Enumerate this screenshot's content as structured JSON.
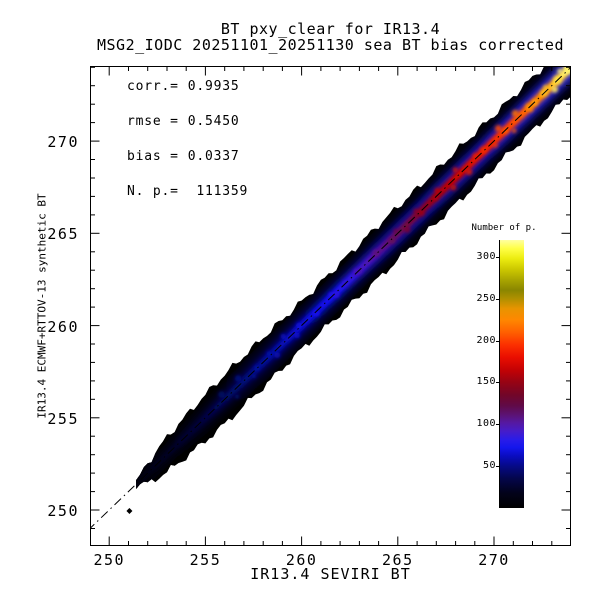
{
  "figure": {
    "title_line1": "BT pxy_clear for IR13.4",
    "title_line2": "MSG2_IODC 20251101_20251130 sea BT bias corrected"
  },
  "stats_panel": {
    "rows": [
      {
        "label": "corr.=",
        "value": "0.9935"
      },
      {
        "label": "rmse =",
        "value": "0.5450"
      },
      {
        "label": "bias =",
        "value": "0.0337"
      },
      {
        "label": "N. p.=",
        "value": " 111359"
      }
    ]
  },
  "chart_data": {
    "type": "heatmap",
    "title": "BT pxy_clear for IR13.4",
    "subtitle": "MSG2_IODC 20251101_20251130 sea BT bias corrected",
    "xlabel": "IR13.4 SEVIRI BT",
    "ylabel": "IR13.4 ECMWF+RTTOV-13 synthetic BT",
    "xlim": [
      249.0,
      274.0
    ],
    "ylim": [
      248.05,
      274.07
    ],
    "xticks": [
      250,
      255,
      260,
      265,
      270
    ],
    "yticks": [
      250,
      255,
      260,
      265,
      270
    ],
    "minor_tick_step": 1,
    "grid": false,
    "stats": {
      "corr": 0.9935,
      "rmse": 0.545,
      "bias": 0.0337,
      "n_points": 111359
    },
    "identity_line": {
      "style": "dash-dot",
      "from": 247.5,
      "to": 275.0,
      "dash": "9 4 1.5 4",
      "color": "#000000"
    },
    "colorbar": {
      "title": "Number of p.",
      "ticks": [
        50,
        100,
        150,
        200,
        250,
        300
      ],
      "vmin": 0,
      "vmax": 320,
      "legend_position": "right-inside",
      "stops": [
        [
          0,
          "#000000"
        ],
        [
          18,
          "#02021a"
        ],
        [
          35,
          "#04064a"
        ],
        [
          50,
          "#060a86"
        ],
        [
          62,
          "#0a0cc0"
        ],
        [
          72,
          "#1416ec"
        ],
        [
          82,
          "#2a1ce8"
        ],
        [
          92,
          "#461cc8"
        ],
        [
          102,
          "#5618a0"
        ],
        [
          112,
          "#5c1270"
        ],
        [
          122,
          "#600a48"
        ],
        [
          135,
          "#720628"
        ],
        [
          150,
          "#960314"
        ],
        [
          165,
          "#c40204"
        ],
        [
          180,
          "#ea0e00"
        ],
        [
          195,
          "#fc3000"
        ],
        [
          210,
          "#ff6000"
        ],
        [
          225,
          "#ff8800"
        ],
        [
          238,
          "#e89400"
        ],
        [
          250,
          "#b09000"
        ],
        [
          260,
          "#8a8600"
        ],
        [
          272,
          "#a8a400"
        ],
        [
          285,
          "#ccc800"
        ],
        [
          298,
          "#ecec10"
        ],
        [
          310,
          "#ffff48"
        ],
        [
          320,
          "#ffffa0"
        ]
      ]
    },
    "density_band": {
      "description": "clear-sky match-up density concentrated along the 1:1 line; counts rise from ~5 near 251K to ~320 at 274K",
      "t_start": 251.4,
      "t_end": 274.3,
      "halfwidth_profile": [
        [
          251.4,
          0.1
        ],
        [
          251.9,
          0.5
        ],
        [
          253.0,
          0.95
        ],
        [
          254.5,
          1.2
        ],
        [
          256.0,
          1.35
        ],
        [
          258.0,
          1.35
        ],
        [
          260.0,
          1.3
        ],
        [
          262.0,
          1.38
        ],
        [
          264.0,
          1.45
        ],
        [
          266.0,
          1.42
        ],
        [
          268.0,
          1.45
        ],
        [
          270.0,
          1.42
        ],
        [
          272.0,
          1.45
        ],
        [
          274.3,
          1.42
        ]
      ],
      "core_stops": [
        [
          251.4,
          "#020208"
        ],
        [
          253.0,
          "#02021c"
        ],
        [
          255.0,
          "#030538"
        ],
        [
          257.0,
          "#04086a"
        ],
        [
          259.0,
          "#0608a4"
        ],
        [
          260.5,
          "#0a0cd2"
        ],
        [
          262.0,
          "#1612ee"
        ],
        [
          263.0,
          "#3214d8"
        ],
        [
          264.0,
          "#5012a8"
        ],
        [
          264.8,
          "#5e0e78"
        ],
        [
          265.6,
          "#66084e"
        ],
        [
          266.4,
          "#7c0530"
        ],
        [
          267.2,
          "#980314"
        ],
        [
          268.0,
          "#b80306"
        ],
        [
          269.0,
          "#d60c00"
        ],
        [
          270.0,
          "#ec2000"
        ],
        [
          271.0,
          "#fa3c00"
        ],
        [
          272.0,
          "#ff6400"
        ],
        [
          272.8,
          "#ff8c00"
        ],
        [
          273.4,
          "#ffb81c"
        ],
        [
          273.9,
          "#ffe450"
        ],
        [
          274.3,
          "#fff480"
        ]
      ],
      "layers": [
        {
          "name": "outer-sheen",
          "width": 30,
          "blur": 5,
          "stops": [
            [
              251.4,
              "#000000"
            ],
            [
              258,
              "#010108"
            ],
            [
              264,
              "#020212"
            ],
            [
              270,
              "#04041e"
            ],
            [
              274.3,
              "#07072a"
            ]
          ]
        },
        {
          "name": "blue-halo",
          "width": 17,
          "blur": 4,
          "stops": [
            [
              251.4,
              "#000004"
            ],
            [
              254,
              "#010114"
            ],
            [
              256,
              "#02022c"
            ],
            [
              258,
              "#030448"
            ],
            [
              260,
              "#040662"
            ],
            [
              262,
              "#06087c"
            ],
            [
              264,
              "#0a0c92"
            ],
            [
              266,
              "#0e10a6"
            ],
            [
              268,
              "#1414ba"
            ],
            [
              270,
              "#1a1ace"
            ],
            [
              272,
              "#2222de"
            ],
            [
              274.3,
              "#2c2cea"
            ]
          ]
        },
        {
          "name": "core",
          "width": 8,
          "blur": 2.2,
          "stops_ref": "core_stops",
          "shift": 0
        },
        {
          "name": "core-bright",
          "width": 4,
          "blur": 1.2,
          "stops_ref": "core_stops",
          "shift": 0.5
        }
      ],
      "hotspots": {
        "t_start": 256.0,
        "t_end": 274.05,
        "step": 0.45,
        "base_radius": 2.3,
        "radius_var": 1.2,
        "jitter": 0.3,
        "color_shift": 0.9
      },
      "bright_blobs": [
        [
          270.6,
          "#ff5c00",
          3.0
        ],
        [
          271.8,
          "#ff9000",
          3.2
        ],
        [
          272.6,
          "#ffc020",
          3.6
        ],
        [
          273.3,
          "#ffe040",
          4.2
        ],
        [
          273.85,
          "#fff468",
          4.6
        ]
      ],
      "outlier_point": {
        "x": 251.05,
        "y": 249.95
      }
    }
  }
}
